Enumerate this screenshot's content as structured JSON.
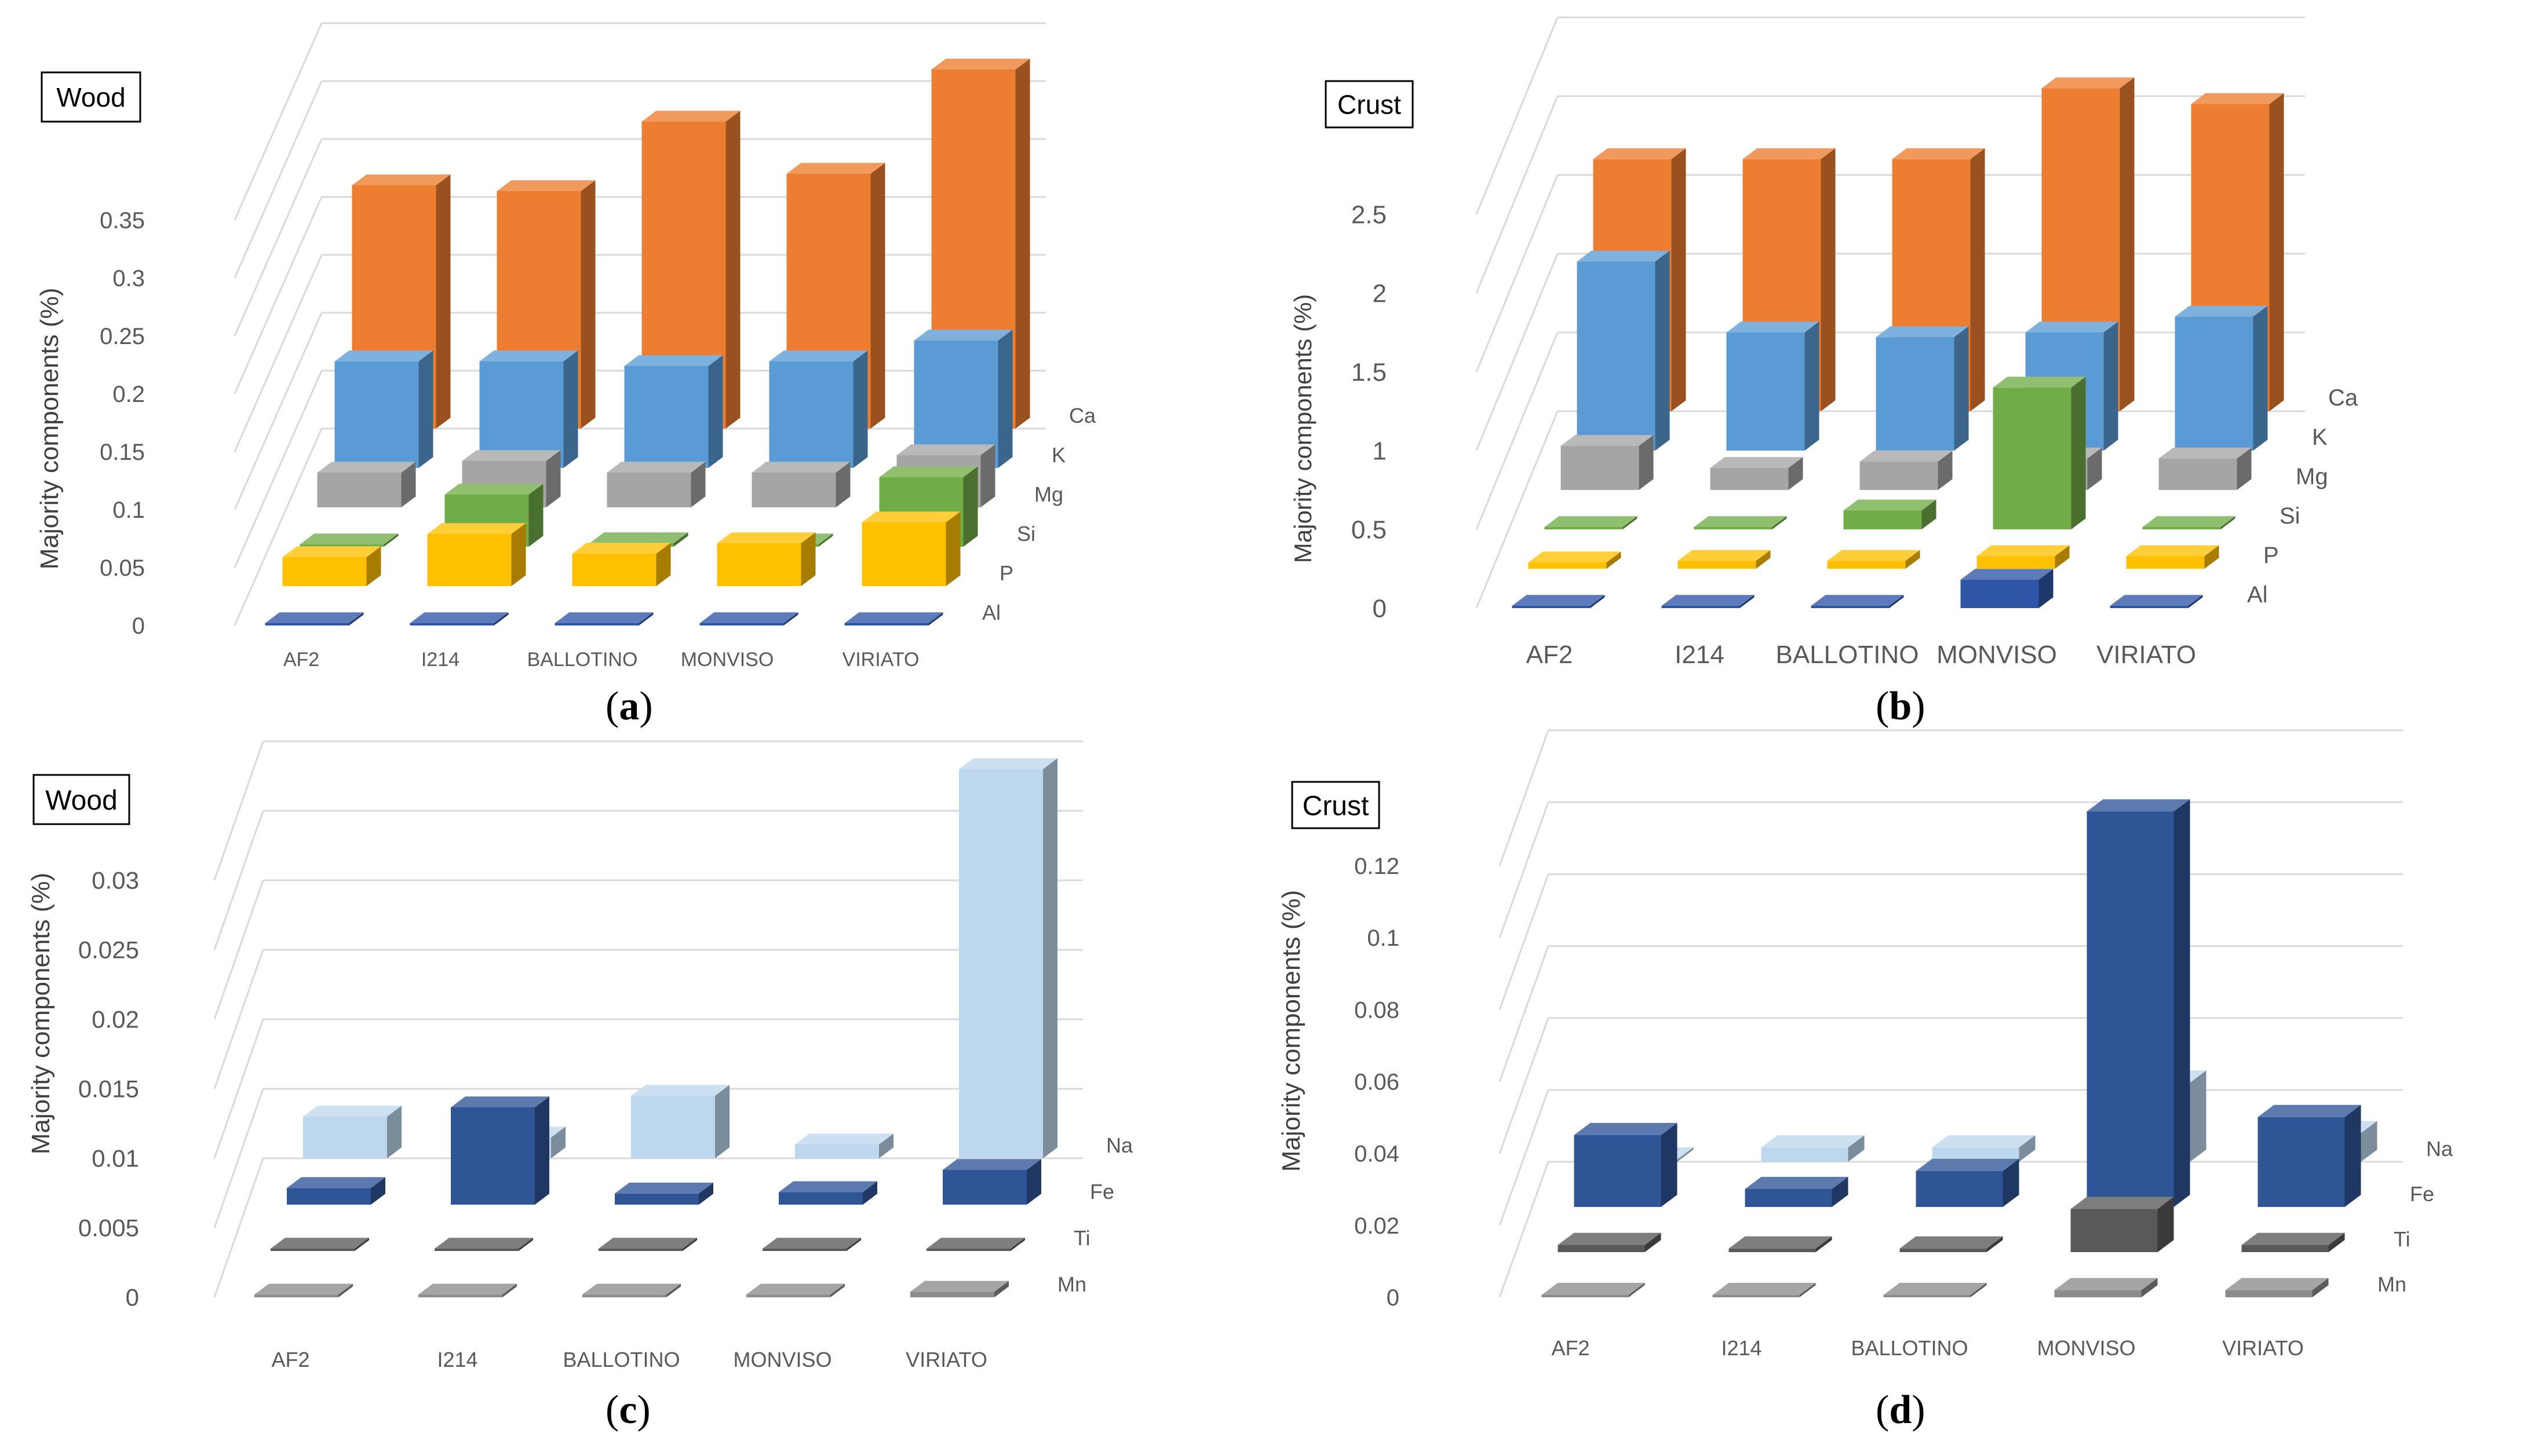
{
  "captions": [
    "a",
    "b",
    "c",
    "d"
  ],
  "chart_data": [
    {
      "type": "bar3d",
      "tag": "Wood",
      "ylabel": "Majority components (%)",
      "ylim": [
        0,
        0.35
      ],
      "ticks": [
        "0",
        "0.05",
        "0.1",
        "0.15",
        "0.2",
        "0.25",
        "0.3",
        "0.35"
      ],
      "categories": [
        "AF2",
        "I214",
        "BALLOTINO",
        "MONVISO",
        "VIRIATO"
      ],
      "series": [
        {
          "name": "Al",
          "color": "#2f56a6",
          "values": [
            0.001,
            0.001,
            0.001,
            0.001,
            0.001
          ]
        },
        {
          "name": "P",
          "color": "#ffc000",
          "values": [
            0.025,
            0.045,
            0.028,
            0.037,
            0.055
          ]
        },
        {
          "name": "Si",
          "color": "#70ad47",
          "values": [
            0.002,
            0.045,
            0.003,
            0.002,
            0.06
          ]
        },
        {
          "name": "Mg",
          "color": "#a5a5a5",
          "values": [
            0.03,
            0.04,
            0.03,
            0.03,
            0.045
          ]
        },
        {
          "name": "K",
          "color": "#5b9bd5",
          "values": [
            0.092,
            0.092,
            0.088,
            0.092,
            0.11
          ]
        },
        {
          "name": "Ca",
          "color": "#ed7d31",
          "values": [
            0.21,
            0.205,
            0.265,
            0.22,
            0.31
          ]
        }
      ]
    },
    {
      "type": "bar3d",
      "tag": "Crust",
      "ylabel": "Majority components (%)",
      "ylim": [
        0,
        2.5
      ],
      "ticks": [
        "0",
        "0.5",
        "1",
        "1.5",
        "2",
        "2.5"
      ],
      "categories": [
        "AF2",
        "I214",
        "BALLOTINO",
        "MONVISO",
        "VIRIATO"
      ],
      "series": [
        {
          "name": "Al",
          "color": "#2f56a6",
          "values": [
            0.01,
            0.01,
            0.01,
            0.18,
            0.01
          ]
        },
        {
          "name": "P",
          "color": "#ffc000",
          "values": [
            0.04,
            0.05,
            0.05,
            0.08,
            0.08
          ]
        },
        {
          "name": "Si",
          "color": "#70ad47",
          "values": [
            0.01,
            0.01,
            0.12,
            0.9,
            0.01
          ]
        },
        {
          "name": "Mg",
          "color": "#a5a5a5",
          "values": [
            0.28,
            0.14,
            0.18,
            0.2,
            0.2
          ]
        },
        {
          "name": "K",
          "color": "#5b9bd5",
          "values": [
            1.2,
            0.75,
            0.72,
            0.75,
            0.85
          ]
        },
        {
          "name": "Ca",
          "color": "#ed7d31",
          "values": [
            1.6,
            1.6,
            1.6,
            2.05,
            1.95
          ]
        }
      ]
    },
    {
      "type": "bar3d",
      "tag": "Wood",
      "ylabel": "Majority components (%)",
      "ylim": [
        0,
        0.03
      ],
      "ticks": [
        "0",
        "0.005",
        "0.01",
        "0.015",
        "0.02",
        "0.025",
        "0.03"
      ],
      "categories": [
        "AF2",
        "I214",
        "BALLOTINO",
        "MONVISO",
        "VIRIATO"
      ],
      "series": [
        {
          "name": "Mn",
          "color": "#8c8c8c",
          "values": [
            0.0002,
            0.0002,
            0.0002,
            0.0002,
            0.0004
          ]
        },
        {
          "name": "Ti",
          "color": "#595959",
          "values": [
            0.0001,
            0.0001,
            0.0001,
            0.0001,
            0.0001
          ]
        },
        {
          "name": "Fe",
          "color": "#2f5597",
          "values": [
            0.0012,
            0.007,
            0.0008,
            0.0009,
            0.0025
          ]
        },
        {
          "name": "Na",
          "color": "#bdd7ee",
          "values": [
            0.003,
            0.0015,
            0.0045,
            0.001,
            0.028
          ]
        }
      ]
    },
    {
      "type": "bar3d",
      "tag": "Crust",
      "ylabel": "Majority components (%)",
      "ylim": [
        0,
        0.12
      ],
      "ticks": [
        "0",
        "0.02",
        "0.04",
        "0.06",
        "0.08",
        "0.1",
        "0.12"
      ],
      "categories": [
        "AF2",
        "I214",
        "BALLOTINO",
        "MONVISO",
        "VIRIATO"
      ],
      "series": [
        {
          "name": "Mn",
          "color": "#8c8c8c",
          "values": [
            0.0005,
            0.0005,
            0.0005,
            0.002,
            0.002
          ]
        },
        {
          "name": "Ti",
          "color": "#595959",
          "values": [
            0.002,
            0.001,
            0.001,
            0.012,
            0.002
          ]
        },
        {
          "name": "Fe",
          "color": "#2f5597",
          "values": [
            0.02,
            0.005,
            0.01,
            0.11,
            0.025
          ]
        },
        {
          "name": "Na",
          "color": "#bdd7ee",
          "values": [
            0.0005,
            0.004,
            0.004,
            0.022,
            0.008
          ]
        }
      ]
    }
  ]
}
